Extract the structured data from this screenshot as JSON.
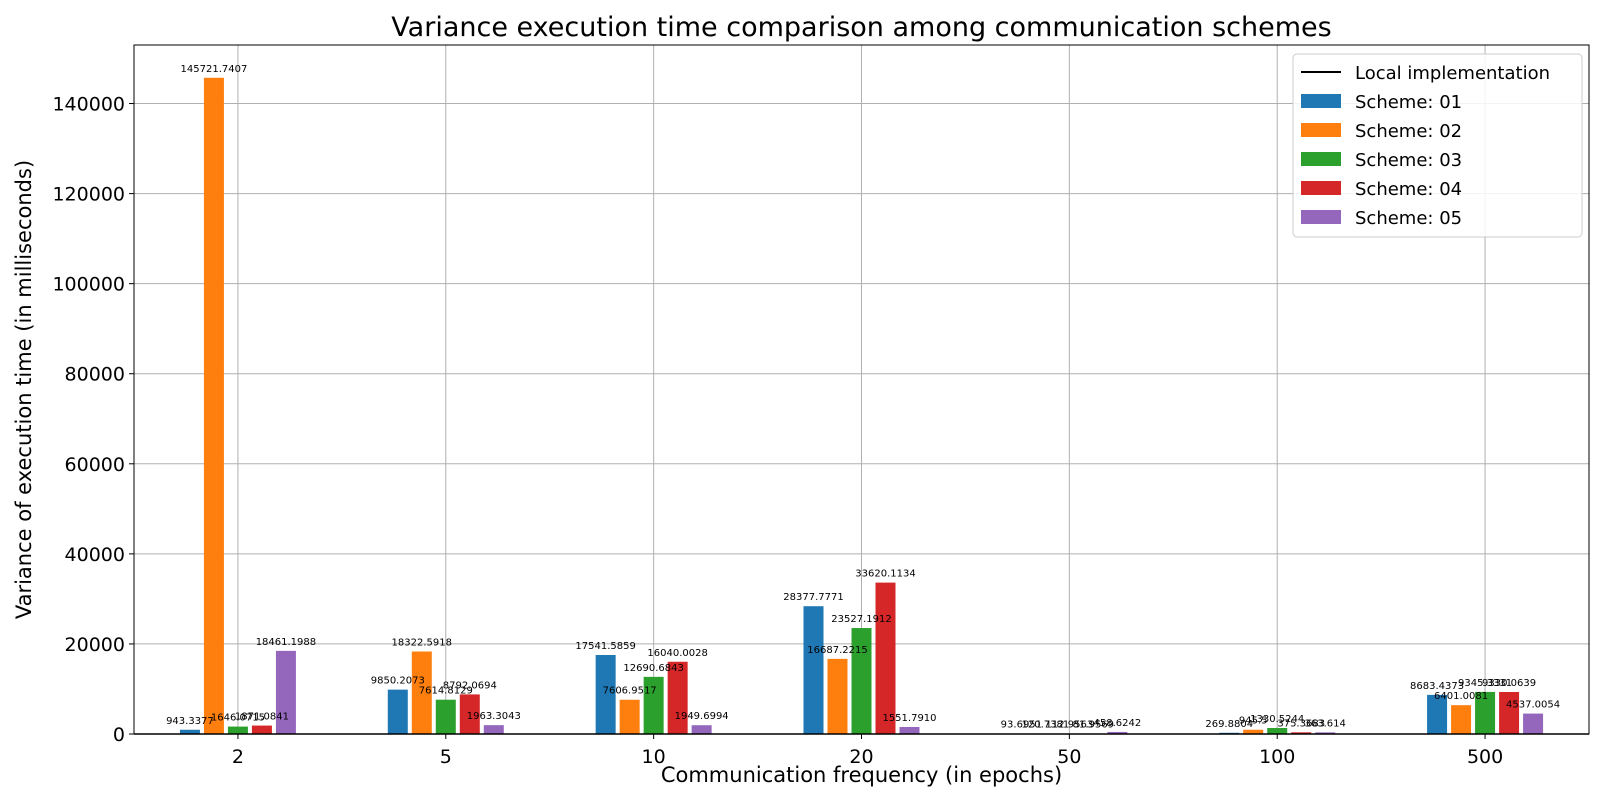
{
  "chart_data": {
    "type": "bar",
    "title": "Variance execution time comparison among communication schemes",
    "xlabel": "Communication frequency (in epochs)",
    "ylabel": "Variance of execution time (in milliseconds)",
    "categories": [
      "2",
      "5",
      "10",
      "20",
      "50",
      "100",
      "500"
    ],
    "ylim": [
      0,
      153000
    ],
    "yticks": [
      0,
      20000,
      40000,
      60000,
      80000,
      100000,
      120000,
      140000
    ],
    "grid": true,
    "legend_position": "top-right",
    "series": [
      {
        "name": "Local implementation",
        "values": [
          0,
          0,
          0,
          0,
          0,
          0,
          0
        ],
        "color": "#000000",
        "kind": "line"
      },
      {
        "name": "Scheme: 01",
        "color": "#1f77b4",
        "values": [
          943.3377,
          9850.2073,
          17541.5859,
          28377.7771,
          93.6951,
          269.8804,
          8683.4373
        ],
        "labels": [
          "943.3377",
          "9850.2073",
          "17541.5859",
          "28377.7771",
          "93.6951",
          "269.8804",
          "8683.4373"
        ]
      },
      {
        "name": "Scheme: 02",
        "color": "#ff7f0e",
        "values": [
          145721.7407,
          18322.5918,
          7606.9517,
          16687.2215,
          120.7381,
          945.5,
          6401.0081
        ],
        "labels": [
          "145721.7407",
          "18322.5918",
          "7606.9517",
          "16687.2215",
          "120.7381",
          "945.5",
          "6401.0081"
        ]
      },
      {
        "name": "Scheme: 03",
        "color": "#2ca02c",
        "values": [
          1646.0715,
          7614.8129,
          12690.6843,
          23527.1912,
          112.9563,
          1330.5244,
          9345.3331
        ],
        "labels": [
          "1646.0715",
          "7614.8129",
          "12690.6843",
          "23527.1912",
          "112.9563",
          "1330.5244",
          "9345.3331"
        ]
      },
      {
        "name": "Scheme: 04",
        "color": "#d62728",
        "values": [
          1871.0841,
          8792.0694,
          16040.0028,
          33620.1134,
          81.9569,
          375.3683,
          9330.0639
        ],
        "labels": [
          "1871.0841",
          "8792.0694",
          "16040.0028",
          "33620.1134",
          "81.9569",
          "375.3683",
          "9330.0639"
        ]
      },
      {
        "name": "Scheme: 05",
        "color": "#9467bd",
        "values": [
          18461.1988,
          1963.3043,
          1949.6994,
          1551.791,
          458.6242,
          363.614,
          4537.0054
        ],
        "labels": [
          "18461.1988",
          "1963.3043",
          "1949.6994",
          "1551.7910",
          "458.6242",
          "363.614",
          "4537.0054"
        ]
      }
    ]
  }
}
